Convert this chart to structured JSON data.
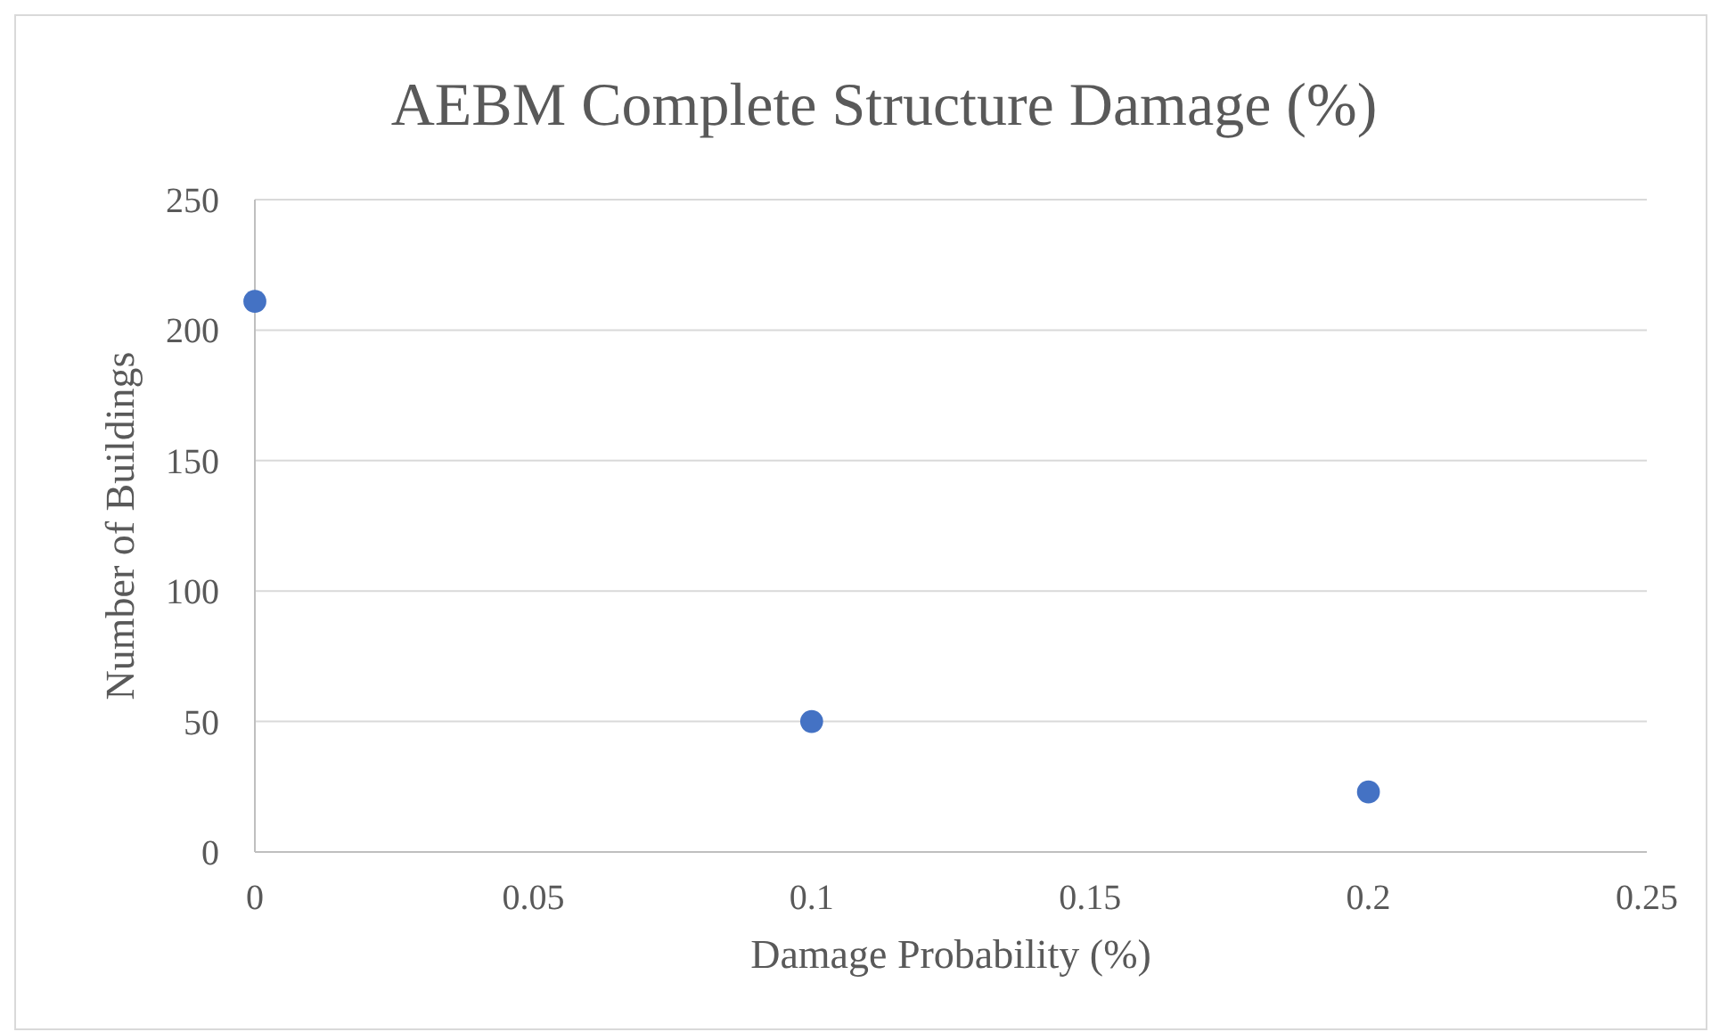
{
  "chart_data": {
    "type": "scatter",
    "title": "AEBM Complete Structure Damage (%)",
    "xlabel": "Damage Probability (%)",
    "ylabel": "Number of Buildings",
    "x": [
      0,
      0.1,
      0.2
    ],
    "series": [
      {
        "color": "#4472c4",
        "values": [
          211,
          50,
          23
        ]
      }
    ],
    "xlim": [
      0,
      0.25
    ],
    "xticks": [
      0,
      0.05,
      0.1,
      0.15,
      0.2,
      0.25
    ],
    "ylim": [
      0,
      250
    ],
    "yticks": [
      0,
      50,
      100,
      150,
      200,
      250
    ],
    "grid": "y",
    "marker": "circle"
  }
}
